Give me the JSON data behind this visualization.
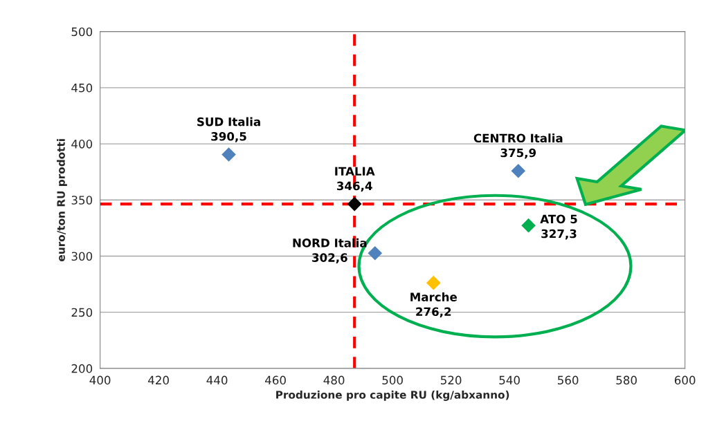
{
  "chart_data": {
    "type": "scatter",
    "xlabel": "Produzione pro capite RU (kg/abxanno)",
    "ylabel": "euro/ton RU prodotti",
    "xlim": [
      400,
      600
    ],
    "xticks": [
      400,
      420,
      440,
      460,
      480,
      500,
      520,
      540,
      560,
      580,
      600
    ],
    "ylim": [
      200,
      500
    ],
    "yticks": [
      200,
      250,
      300,
      350,
      400,
      450,
      500
    ],
    "grid": "y",
    "marker": "diamond",
    "legend": false,
    "series": [
      {
        "name": "SUD Italia",
        "color": "#4f81bd",
        "x": [
          444
        ],
        "values": [
          390.5
        ],
        "value_labels": [
          "390,5"
        ]
      },
      {
        "name": "ITALIA",
        "color": "#000000",
        "x": [
          487
        ],
        "values": [
          346.4
        ],
        "value_labels": [
          "346,4"
        ]
      },
      {
        "name": "NORD Italia",
        "color": "#4f81bd",
        "x": [
          494
        ],
        "values": [
          302.6
        ],
        "value_labels": [
          "302,6"
        ]
      },
      {
        "name": "Marche",
        "color": "#ffc000",
        "x": [
          514
        ],
        "values": [
          276.2
        ],
        "value_labels": [
          "276,2"
        ]
      },
      {
        "name": "CENTRO Italia",
        "color": "#4f81bd",
        "x": [
          543
        ],
        "values": [
          375.9
        ],
        "value_labels": [
          "375,9"
        ]
      },
      {
        "name": "ATO 5",
        "color": "#00b050",
        "x": [
          546.5
        ],
        "values": [
          327.3
        ],
        "value_labels": [
          "327,3"
        ]
      }
    ],
    "ref_lines": [
      {
        "axis": "x",
        "value": 487,
        "color": "#ff0000",
        "line_style": "dashed"
      },
      {
        "axis": "y",
        "value": 346.4,
        "color": "#ff0000",
        "line_style": "dashed"
      }
    ]
  }
}
